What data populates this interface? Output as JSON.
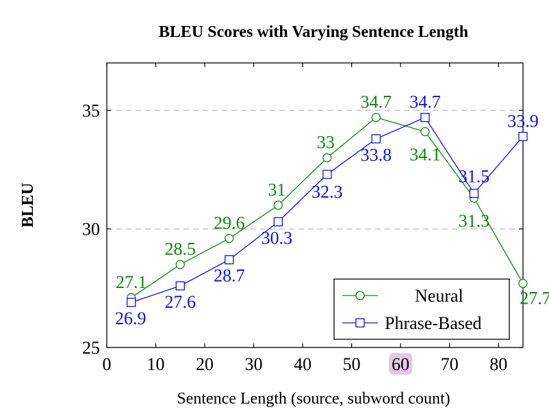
{
  "chart_data": {
    "type": "line",
    "title": "BLEU Scores with Varying Sentence Length",
    "xlabel": "Sentence Length (source, subword count)",
    "ylabel": "BLEU",
    "xlim": [
      0,
      85
    ],
    "ylim": [
      25,
      37
    ],
    "x_ticks": [
      0,
      10,
      20,
      30,
      40,
      50,
      60,
      70,
      80
    ],
    "y_ticks": [
      25,
      30,
      35
    ],
    "grid": "horizontal dashed",
    "legend_position": "bottom-right",
    "highlighted_tick": 60,
    "highlight_color": "#e6c8e6",
    "x": [
      5,
      15,
      25,
      35,
      45,
      55,
      65,
      75,
      85
    ],
    "series": [
      {
        "name": "Neural",
        "marker": "circle",
        "color": "#0a8a0a",
        "values": [
          27.1,
          28.5,
          29.6,
          31,
          33,
          34.7,
          34.1,
          31.3,
          27.7
        ],
        "labels": [
          "27.1",
          "28.5",
          "29.6",
          "31",
          "33",
          "34.7",
          "34.1",
          "31.3",
          "27.7"
        ]
      },
      {
        "name": "Phrase-Based",
        "marker": "square",
        "color": "#1010e0",
        "values": [
          26.9,
          27.6,
          28.7,
          30.3,
          32.3,
          33.8,
          34.7,
          31.5,
          33.9
        ],
        "labels": [
          "26.9",
          "27.6",
          "28.7",
          "30.3",
          "32.3",
          "33.8",
          "34.7",
          "31.5",
          "33.9"
        ]
      }
    ]
  }
}
